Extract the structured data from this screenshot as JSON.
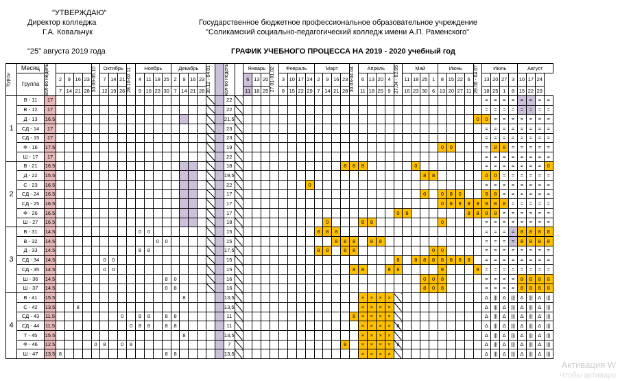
{
  "approval": {
    "line1": "\"УТВЕРЖДАЮ\"",
    "line2": "Директор колледжа",
    "line3": "Г.А. Ковальчук",
    "line4": "\"25\" августа 2019 года"
  },
  "institution": {
    "line1": "Государственное бюджетное профессиональное образовательное учреждение",
    "line2": "\"Соликамский социально-педагогический колледж имени А.П. Раменского\""
  },
  "title": "ГРАФИК УЧЕБНОГО ПРОЦЕССА НА  2019 - 2020 учебный год",
  "labels": {
    "month": "Месяц",
    "group": "Группа",
    "kursy": "Курсы",
    "weeks": "кол-во недель"
  },
  "columns": {
    "months": [
      "Октябрь",
      "Ноябрь",
      "Декабрь",
      "Январь",
      "Февраль",
      "Март",
      "Апрель",
      "Май",
      "Июнь",
      "Июль",
      "Август"
    ],
    "transitions": [
      "30.09-05.10",
      "28.10-02.11",
      "30.12 - 04.01",
      "27.01-01.02",
      "30.03-04.04",
      "27.04 - 02.05",
      "29.06 - 04.07"
    ],
    "weeks_top": [
      "2",
      "9",
      "16",
      "23",
      "7",
      "14",
      "21",
      "4",
      "11",
      "18",
      "25",
      "2",
      "9",
      "16",
      "23",
      "6",
      "13",
      "20",
      "3",
      "10",
      "17",
      "24",
      "2",
      "9",
      "16",
      "23",
      "6",
      "13",
      "20",
      "4",
      "11",
      "18",
      "25",
      "1",
      "8",
      "15",
      "22",
      "6",
      "13",
      "20",
      "27",
      "3",
      "10",
      "17",
      "24"
    ],
    "weeks_bottom": [
      "7",
      "14",
      "21",
      "28",
      "12",
      "19",
      "26",
      "9",
      "16",
      "23",
      "30",
      "7",
      "14",
      "21",
      "28",
      "11",
      "18",
      "25",
      "8",
      "15",
      "22",
      "29",
      "7",
      "14",
      "21",
      "28",
      "11",
      "18",
      "25",
      "9",
      "16",
      "23",
      "30",
      "6",
      "13",
      "20",
      "27",
      "11",
      "18",
      "25",
      "1",
      "8",
      "15",
      "22",
      "29"
    ]
  },
  "courses": [
    {
      "num": "1",
      "groups": [
        {
          "name": "В - 11",
          "w": "17",
          "t": "22",
          "cells": {
            "lav": [
              52,
              53,
              57
            ],
            "dark": [
              57
            ]
          }
        },
        {
          "name": "В - 12",
          "w": "17",
          "t": "22",
          "cells": {
            "lav": [
              52,
              53,
              57
            ]
          }
        },
        {
          "name": "Д - 13",
          "w": "16.5",
          "t": "21,5",
          "cells": {
            "lav": [
              14,
              57
            ],
            "gold0": [
              47,
              48
            ]
          }
        },
        {
          "name": "СД - 14",
          "w": "17",
          "t": "23",
          "cells": {
            "lav": [
              57
            ]
          }
        },
        {
          "name": "СД - 15",
          "w": "17",
          "t": "23",
          "cells": {
            "lav": [
              57
            ]
          }
        },
        {
          "name": "Ф - 16",
          "w": "17.5",
          "t": "19",
          "cells": {
            "lav": [
              57
            ],
            "gold0": [
              43,
              44
            ],
            "gold8": [
              49,
              50
            ]
          }
        },
        {
          "name": "Ш - 17",
          "w": "17",
          "t": "22",
          "cells": {
            "lav": [
              57
            ]
          }
        }
      ]
    },
    {
      "num": "2",
      "groups": [
        {
          "name": "В - 21",
          "w": "16.5",
          "t": "18",
          "cells": {
            "lav": [
              14,
              15,
              56
            ],
            "gold8": [
              32,
              33,
              34
            ],
            "gold0": [
              40,
              55
            ]
          }
        },
        {
          "name": "Д - 22",
          "w": "15.5",
          "t": "19,5",
          "cells": {
            "lav": [
              14,
              15
            ],
            "gold8": [
              41,
              42
            ],
            "gold0": [
              48,
              49
            ]
          }
        },
        {
          "name": "С - 23",
          "w": "16.5",
          "t": "22",
          "cells": {
            "lav": [
              14,
              15
            ],
            "gold0": [
              28
            ]
          }
        },
        {
          "name": "СД - 24",
          "w": "16.5",
          "t": "17",
          "cells": {
            "lav": [
              14,
              15
            ],
            "gold0": [
              41,
              43,
              45
            ],
            "gold8": [
              44,
              48,
              49
            ]
          }
        },
        {
          "name": "СД - 25",
          "w": "16.5",
          "t": "17",
          "cells": {
            "lav": [
              14,
              15
            ],
            "gold0": [
              43
            ],
            "gold8": [
              44,
              45,
              46,
              47,
              48,
              49,
              50
            ]
          }
        },
        {
          "name": "Ф - 26",
          "w": "16.5",
          "t": "17",
          "cells": {
            "lav": [
              14,
              15
            ],
            "gold0": [
              38
            ],
            "gold8": [
              39,
              46,
              47,
              48,
              49
            ]
          }
        },
        {
          "name": "Ш - 27",
          "w": "16.5",
          "t": "18",
          "cells": {
            "lav": [
              14,
              15
            ],
            "gold0": [
              30,
              43
            ],
            "gold8": [
              34,
              35
            ]
          }
        }
      ]
    },
    {
      "num": "3",
      "groups": [
        {
          "name": "В - 31",
          "w": "14.5",
          "t": "15",
          "cells": {
            "zero": [
              9,
              10
            ],
            "lav": [
              51
            ],
            "gold8": [
              29,
              30,
              31,
              52,
              53,
              54,
              55
            ]
          }
        },
        {
          "name": "В - 32",
          "w": "14.5",
          "t": "15",
          "cells": {
            "zero": [
              11,
              12
            ],
            "lav": [
              51
            ],
            "gold8": [
              31,
              32,
              33,
              35,
              36,
              52,
              53,
              54,
              55
            ]
          }
        },
        {
          "name": "Д - 33",
          "w": "14.5",
          "t": "17,5",
          "cells": {
            "eight": [
              9,
              10
            ],
            "gold8": [
              29,
              30,
              32,
              33
            ],
            "gold0": [
              42,
              43
            ]
          }
        },
        {
          "name": "СД - 34",
          "w": "14.5",
          "t": "15",
          "cells": {
            "zero": [
              5,
              6
            ],
            "gold8": [
              38,
              40,
              41,
              42,
              43,
              44,
              45,
              46
            ]
          }
        },
        {
          "name": "СД - 35",
          "w": "14.5",
          "t": "15",
          "cells": {
            "zero": [
              5,
              6
            ],
            "gold8": [
              33,
              34,
              37,
              38,
              43,
              47
            ]
          }
        },
        {
          "name": "Ш - 36",
          "w": "14.5",
          "t": "16",
          "cells": {
            "zero": [
              13
            ],
            "eight": [
              12
            ],
            "gold0": [
              41,
              42
            ],
            "gold8": [
              43,
              52,
              53,
              54,
              55
            ]
          }
        },
        {
          "name": "Ш - 37",
          "w": "14.5",
          "t": "16",
          "cells": {
            "zero": [
              12
            ],
            "eight": [
              13
            ],
            "gold8": [
              41,
              43,
              52,
              53,
              54,
              55
            ],
            "gold0": [
              42
            ]
          }
        }
      ]
    },
    {
      "num": "4",
      "groups": [
        {
          "name": "В - 41",
          "w": "15.5",
          "t": "13,5",
          "cells": {
            "eight": [
              14
            ]
          }
        },
        {
          "name": "С - 42",
          "w": "13.5",
          "t": "13,5",
          "cells": {
            "eight": [
              2
            ]
          }
        },
        {
          "name": "СД - 43",
          "w": "11.5",
          "t": "11",
          "cells": {
            "zero": [
              7
            ],
            "eight": [
              9,
              10,
              12,
              13
            ],
            "gold8": [
              33,
              34
            ]
          }
        },
        {
          "name": "СД - 44",
          "w": "11.5",
          "t": "11",
          "cells": {
            "zero": [
              8
            ],
            "eight": [
              9,
              10,
              12,
              13
            ],
            "gold8": [
              37,
              38
            ]
          }
        },
        {
          "name": "Т - 45",
          "w": "15.5",
          "t": "13,5",
          "cells": {
            "eight": [
              14
            ]
          }
        },
        {
          "name": "Ф - 46",
          "w": "12.5",
          "t": "7",
          "cells": {
            "zero": [
              4,
              7
            ],
            "eight": [
              5,
              8
            ],
            "gold8": [
              32,
              35,
              36,
              37,
              38
            ]
          }
        },
        {
          "name": "Ш - 47",
          "w": "13.5",
          "t": "13,5",
          "cells": {
            "eight": [
              0,
              12,
              13
            ]
          }
        }
      ]
    }
  ],
  "watermark": {
    "line1": "Активация W",
    "line2": "Чтобы активиро"
  }
}
